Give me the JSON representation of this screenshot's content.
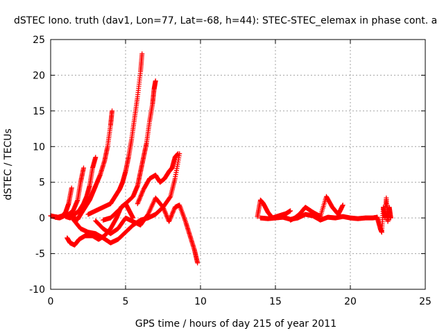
{
  "chart_data": {
    "type": "scatter",
    "title": "dSTEC Iono. truth (dav1, Lon=77, Lat=-68, h=44): STEC-STEC_elemax in phase cont. a",
    "xlabel": "GPS time / hours of day 215 of year 2011",
    "ylabel": "dSTEC  / TECUs",
    "xlim": [
      0,
      25
    ],
    "ylim": [
      -10,
      25
    ],
    "xticks": [
      "0",
      "5",
      "10",
      "15",
      "20",
      "25"
    ],
    "yticks": [
      "-10",
      "-5",
      "0",
      "5",
      "10",
      "15",
      "20",
      "25"
    ],
    "grid": true,
    "marker": "+",
    "color": "#ff0000",
    "series": [
      {
        "x": [
          0.0,
          0.2,
          0.5,
          0.8,
          1.0,
          1.2,
          1.4
        ],
        "y": [
          0.3,
          0.2,
          0.1,
          0.3,
          0.8,
          2.0,
          4.2
        ]
      },
      {
        "x": [
          0.3,
          0.6,
          0.9,
          1.2,
          1.5,
          1.8,
          2.0,
          2.2
        ],
        "y": [
          0.1,
          0.0,
          0.3,
          0.5,
          1.0,
          2.5,
          5.0,
          7.0
        ]
      },
      {
        "x": [
          1.0,
          1.3,
          1.6,
          1.9,
          2.2,
          2.4,
          2.6,
          2.8,
          3.0
        ],
        "y": [
          0.2,
          0.0,
          0.5,
          1.0,
          2.0,
          3.0,
          4.5,
          7.0,
          8.5
        ]
      },
      {
        "x": [
          1.5,
          1.8,
          2.0,
          2.3,
          2.6,
          2.8,
          3.0,
          3.3,
          3.6,
          3.8,
          4.0,
          4.1
        ],
        "y": [
          0.0,
          -0.2,
          0.5,
          1.5,
          2.5,
          3.5,
          4.5,
          6.0,
          8.0,
          10.0,
          13.0,
          15.0
        ]
      },
      {
        "x": [
          2.5,
          3.0,
          3.5,
          4.0,
          4.3,
          4.6,
          4.8,
          5.0,
          5.2,
          5.4,
          5.6,
          5.8,
          6.0,
          6.1
        ],
        "y": [
          0.5,
          1.0,
          1.5,
          2.0,
          3.0,
          4.0,
          5.0,
          6.5,
          8.5,
          11.0,
          14.0,
          17.0,
          20.5,
          23.0
        ]
      },
      {
        "x": [
          3.5,
          4.0,
          4.5,
          5.0,
          5.5,
          5.8,
          6.0,
          6.2,
          6.4,
          6.6,
          6.8,
          6.9,
          7.0
        ],
        "y": [
          -0.3,
          0.0,
          1.0,
          2.0,
          3.0,
          4.5,
          6.5,
          8.5,
          10.5,
          13.5,
          16.0,
          18.0,
          19.2
        ]
      },
      {
        "x": [
          1.1,
          1.3,
          1.6,
          1.9,
          2.3,
          2.8,
          3.2,
          3.6,
          4.0,
          4.4,
          4.7,
          5.0,
          5.2,
          5.5
        ],
        "y": [
          -2.8,
          -3.5,
          -3.8,
          -3.0,
          -2.5,
          -2.5,
          -3.0,
          -2.5,
          -1.5,
          0.0,
          1.5,
          2.0,
          1.2,
          0.0
        ]
      },
      {
        "x": [
          1.5,
          2.0,
          2.5,
          3.0,
          3.5,
          4.0,
          4.5,
          5.0,
          5.5,
          6.0,
          6.5,
          7.0,
          7.5,
          8.0,
          8.3,
          8.6
        ],
        "y": [
          -0.2,
          -1.5,
          -2.0,
          -2.2,
          -2.8,
          -3.5,
          -3.0,
          -2.0,
          -1.0,
          -0.3,
          0.0,
          0.5,
          1.5,
          3.0,
          5.5,
          9.0
        ]
      },
      {
        "x": [
          3.0,
          3.5,
          4.0,
          4.5,
          5.0,
          5.5,
          6.0,
          6.5,
          7.0,
          7.5,
          7.9,
          8.3,
          8.6,
          9.0,
          9.3,
          9.6,
          9.8
        ],
        "y": [
          -0.4,
          -1.5,
          -2.2,
          -1.5,
          0.0,
          -0.5,
          -1.0,
          0.5,
          2.8,
          1.5,
          -0.5,
          1.5,
          1.8,
          -0.5,
          -2.5,
          -4.5,
          -6.3
        ]
      },
      {
        "x": [
          5.8,
          6.2,
          6.6,
          7.0,
          7.3,
          7.6,
          7.9,
          8.1,
          8.3,
          8.5
        ],
        "y": [
          2.0,
          4.0,
          5.5,
          6.0,
          5.0,
          5.5,
          6.5,
          7.0,
          8.5,
          9.0
        ]
      },
      {
        "x": [
          13.8,
          14.0,
          14.2,
          14.5,
          14.8,
          15.1,
          15.4,
          15.7,
          16.0
        ],
        "y": [
          0.2,
          2.5,
          2.0,
          0.8,
          0.0,
          0.2,
          0.4,
          0.6,
          1.0
        ]
      },
      {
        "x": [
          14.0,
          14.5,
          15.0,
          15.5,
          16.0,
          16.5,
          17.0,
          17.5,
          18.0,
          18.5,
          19.0,
          19.5,
          20.0,
          20.5,
          21.0,
          21.5,
          21.8
        ],
        "y": [
          0.0,
          -0.1,
          0.0,
          0.1,
          -0.2,
          0.0,
          0.5,
          0.3,
          -0.3,
          0.1,
          0.0,
          0.2,
          0.0,
          -0.1,
          0.0,
          0.0,
          0.1
        ]
      },
      {
        "x": [
          16.0,
          16.3,
          16.6,
          17.0,
          17.5,
          18.0,
          18.4,
          18.8,
          19.2,
          19.5
        ],
        "y": [
          -0.3,
          0.0,
          0.5,
          1.5,
          0.8,
          0.2,
          3.0,
          1.5,
          0.5,
          1.8
        ]
      },
      {
        "x": [
          21.8,
          22.0,
          22.1,
          22.2,
          22.3,
          22.4,
          22.5,
          22.6,
          22.7
        ],
        "y": [
          0.0,
          -1.5,
          -2.0,
          1.5,
          0.0,
          2.8,
          -0.5,
          1.5,
          0.0
        ]
      }
    ]
  }
}
